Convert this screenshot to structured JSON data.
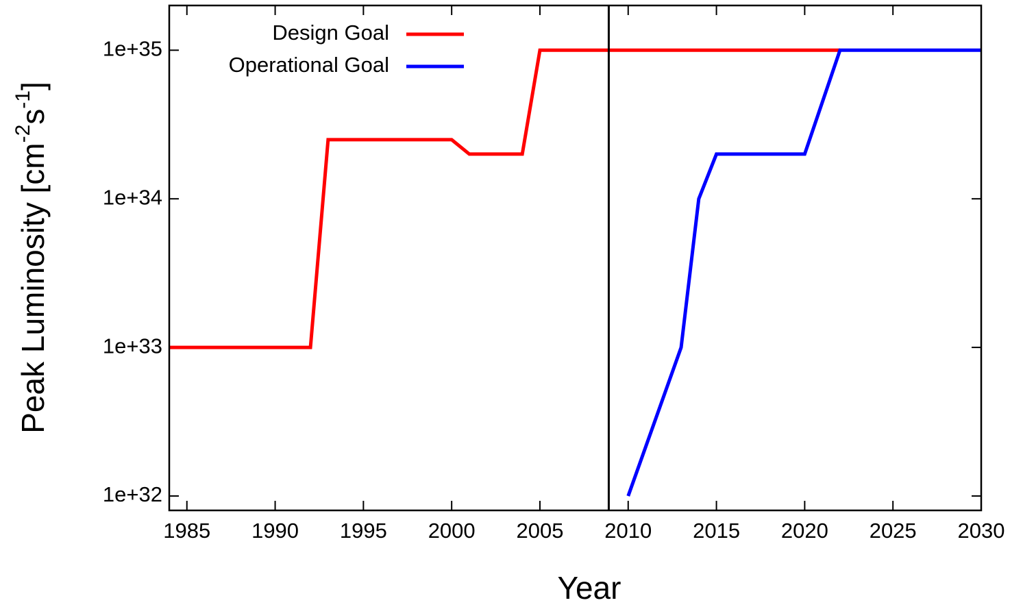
{
  "chart_data": {
    "type": "line",
    "xlabel": "Year",
    "ylabel_parts": [
      {
        "text": "Peak Luminosity [cm"
      },
      {
        "text": "-2",
        "sup": true
      },
      {
        "text": "s"
      },
      {
        "text": "-1",
        "sup": true
      },
      {
        "text": "]"
      }
    ],
    "series": [
      {
        "name": "Design Goal",
        "color": "#ff0000",
        "x": [
          1984,
          1992,
          1993,
          2000,
          2001,
          2004,
          2005,
          2022
        ],
        "values": [
          1e+33,
          1e+33,
          2.5e+34,
          2.5e+34,
          2e+34,
          2e+34,
          1e+35,
          1e+35
        ]
      },
      {
        "name": "Operational Goal",
        "color": "#0000ff",
        "x": [
          2010,
          2013,
          2014,
          2015,
          2020,
          2022,
          2030
        ],
        "values": [
          1e+32,
          1e+33,
          1e+34,
          2e+34,
          2e+34,
          1e+35,
          1e+35
        ]
      }
    ],
    "vlines": [
      2008.9
    ],
    "xlim": [
      1984,
      2030
    ],
    "xticks": [
      1985,
      1990,
      1995,
      2000,
      2005,
      2010,
      2015,
      2020,
      2025,
      2030
    ],
    "ylim": [
      8e+31,
      2e+35
    ],
    "log_y": true,
    "yticks": [
      {
        "value": 1e+32,
        "label": "1e+32"
      },
      {
        "value": 1e+33,
        "label": "1e+33"
      },
      {
        "value": 1e+34,
        "label": "1e+34"
      },
      {
        "value": 1e+35,
        "label": "1e+35"
      }
    ],
    "legend": "upper left"
  }
}
